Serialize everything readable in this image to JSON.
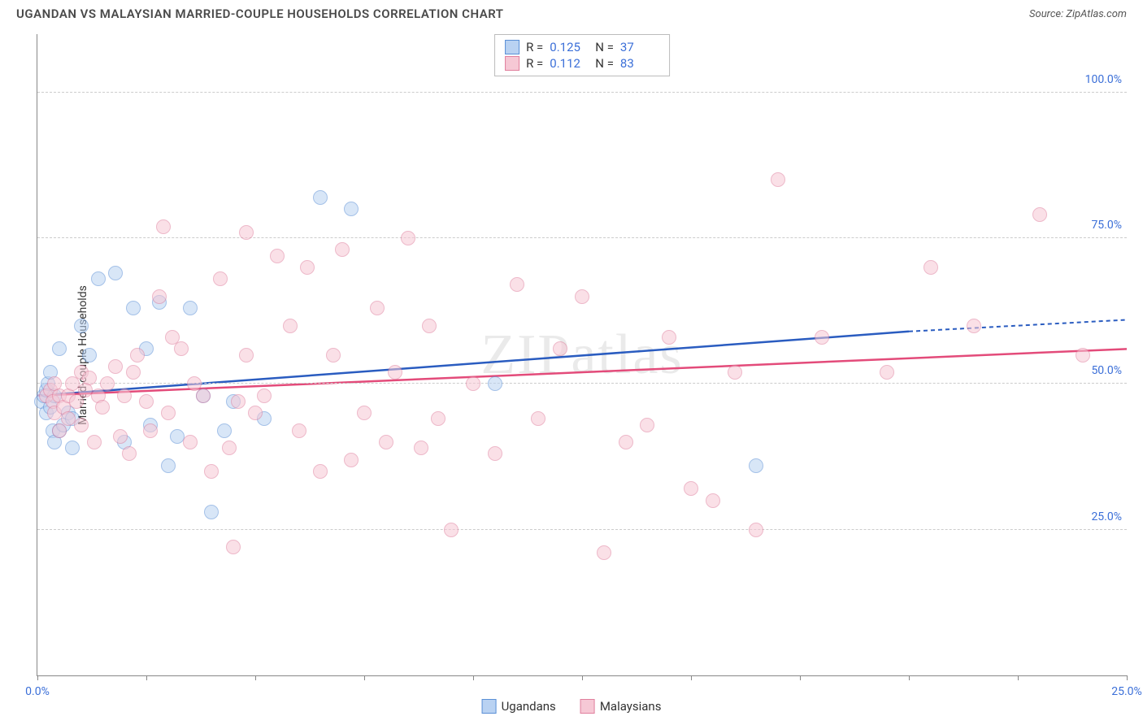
{
  "header": {
    "title": "UGANDAN VS MALAYSIAN MARRIED-COUPLE HOUSEHOLDS CORRELATION CHART",
    "source": "Source: ZipAtlas.com"
  },
  "chart": {
    "type": "scatter",
    "watermark": "ZIPatlas",
    "ylabel": "Married-couple Households",
    "xlim": [
      0,
      25
    ],
    "ylim": [
      0,
      110
    ],
    "yticks": [
      {
        "v": 25,
        "label": "25.0%"
      },
      {
        "v": 50,
        "label": "50.0%"
      },
      {
        "v": 75,
        "label": "75.0%"
      },
      {
        "v": 100,
        "label": "100.0%"
      }
    ],
    "xtick_positions": [
      0,
      2.5,
      5,
      7.5,
      10,
      12.5,
      15,
      17.5,
      20,
      22.5,
      25
    ],
    "xtick_labels": [
      {
        "v": 0,
        "label": "0.0%"
      },
      {
        "v": 25,
        "label": "25.0%"
      }
    ],
    "background_color": "#ffffff",
    "grid_color": "#cccccc",
    "label_color": "#3b6fd8",
    "axis_color": "#888888",
    "marker_radius": 9,
    "marker_opacity": 0.55,
    "series": [
      {
        "name": "Ugandans",
        "fill": "#b9d2f2",
        "stroke": "#5a8fd6",
        "line_color": "#2a5cc0",
        "R": "0.125",
        "N": "37",
        "trend": {
          "x1": 0,
          "y1": 48,
          "x2": 20,
          "y2": 59,
          "dash_x2": 25,
          "dash_y2": 61
        },
        "points": [
          [
            0.1,
            47
          ],
          [
            0.15,
            48
          ],
          [
            0.2,
            49
          ],
          [
            0.2,
            45
          ],
          [
            0.25,
            50
          ],
          [
            0.3,
            46
          ],
          [
            0.3,
            52
          ],
          [
            0.35,
            42
          ],
          [
            0.4,
            48
          ],
          [
            0.4,
            40
          ],
          [
            0.5,
            56
          ],
          [
            0.5,
            42
          ],
          [
            0.6,
            43
          ],
          [
            0.7,
            45
          ],
          [
            0.8,
            39
          ],
          [
            0.8,
            44
          ],
          [
            1.0,
            60
          ],
          [
            1.2,
            55
          ],
          [
            1.4,
            68
          ],
          [
            1.8,
            69
          ],
          [
            2.0,
            40
          ],
          [
            2.2,
            63
          ],
          [
            2.5,
            56
          ],
          [
            2.6,
            43
          ],
          [
            2.8,
            64
          ],
          [
            3.0,
            36
          ],
          [
            3.2,
            41
          ],
          [
            3.5,
            63
          ],
          [
            3.8,
            48
          ],
          [
            4.0,
            28
          ],
          [
            4.3,
            42
          ],
          [
            4.5,
            47
          ],
          [
            5.2,
            44
          ],
          [
            6.5,
            82
          ],
          [
            7.2,
            80
          ],
          [
            10.5,
            50
          ],
          [
            16.5,
            36
          ]
        ]
      },
      {
        "name": "Malaysians",
        "fill": "#f6c8d5",
        "stroke": "#e07f9d",
        "line_color": "#e34b7a",
        "R": "0.112",
        "N": "83",
        "trend": {
          "x1": 0,
          "y1": 48,
          "x2": 25,
          "y2": 56
        },
        "points": [
          [
            0.2,
            48
          ],
          [
            0.3,
            49
          ],
          [
            0.35,
            47
          ],
          [
            0.4,
            50
          ],
          [
            0.4,
            45
          ],
          [
            0.5,
            48
          ],
          [
            0.5,
            42
          ],
          [
            0.6,
            46
          ],
          [
            0.7,
            44
          ],
          [
            0.7,
            48
          ],
          [
            0.8,
            50
          ],
          [
            0.9,
            47
          ],
          [
            1.0,
            52
          ],
          [
            1.0,
            43
          ],
          [
            1.1,
            49
          ],
          [
            1.2,
            51
          ],
          [
            1.3,
            40
          ],
          [
            1.4,
            48
          ],
          [
            1.5,
            46
          ],
          [
            1.6,
            50
          ],
          [
            1.8,
            53
          ],
          [
            1.9,
            41
          ],
          [
            2.0,
            48
          ],
          [
            2.1,
            38
          ],
          [
            2.2,
            52
          ],
          [
            2.3,
            55
          ],
          [
            2.5,
            47
          ],
          [
            2.6,
            42
          ],
          [
            2.8,
            65
          ],
          [
            2.9,
            77
          ],
          [
            3.0,
            45
          ],
          [
            3.1,
            58
          ],
          [
            3.3,
            56
          ],
          [
            3.5,
            40
          ],
          [
            3.6,
            50
          ],
          [
            3.8,
            48
          ],
          [
            4.0,
            35
          ],
          [
            4.2,
            68
          ],
          [
            4.4,
            39
          ],
          [
            4.5,
            22
          ],
          [
            4.6,
            47
          ],
          [
            4.8,
            55
          ],
          [
            4.8,
            76
          ],
          [
            5.0,
            45
          ],
          [
            5.2,
            48
          ],
          [
            5.5,
            72
          ],
          [
            5.8,
            60
          ],
          [
            6.0,
            42
          ],
          [
            6.2,
            70
          ],
          [
            6.5,
            35
          ],
          [
            6.8,
            55
          ],
          [
            7.0,
            73
          ],
          [
            7.2,
            37
          ],
          [
            7.5,
            45
          ],
          [
            7.8,
            63
          ],
          [
            8.0,
            40
          ],
          [
            8.2,
            52
          ],
          [
            8.5,
            75
          ],
          [
            8.8,
            39
          ],
          [
            9.0,
            60
          ],
          [
            9.2,
            44
          ],
          [
            9.5,
            25
          ],
          [
            10.0,
            50
          ],
          [
            10.5,
            38
          ],
          [
            11.0,
            67
          ],
          [
            11.5,
            44
          ],
          [
            12.0,
            56
          ],
          [
            12.5,
            65
          ],
          [
            13.0,
            21
          ],
          [
            13.5,
            40
          ],
          [
            14.0,
            43
          ],
          [
            14.5,
            58
          ],
          [
            15.0,
            32
          ],
          [
            15.5,
            30
          ],
          [
            16.0,
            52
          ],
          [
            16.5,
            25
          ],
          [
            17.0,
            85
          ],
          [
            18.0,
            58
          ],
          [
            19.5,
            52
          ],
          [
            20.5,
            70
          ],
          [
            21.5,
            60
          ],
          [
            23.0,
            79
          ],
          [
            24.0,
            55
          ]
        ]
      }
    ]
  },
  "legend": {
    "series1": "Ugandans",
    "series2": "Malaysians"
  }
}
